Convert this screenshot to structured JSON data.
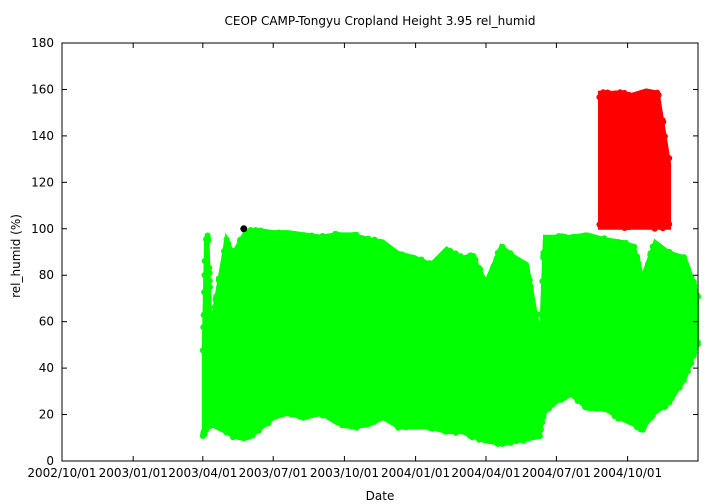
{
  "chart_data": {
    "type": "scatter",
    "title": "CEOP CAMP-Tongyu Cropland Height 3.95 rel_humid",
    "xlabel": "Date",
    "ylabel": "rel_humid (%)",
    "xlim": [
      "2002-10-01",
      "2004-12-31"
    ],
    "ylim": [
      0,
      180
    ],
    "x_ticks": [
      "2002/10/01",
      "2003/01/01",
      "2003/04/01",
      "2003/07/01",
      "2003/10/01",
      "2004/01/01",
      "2004/04/01",
      "2004/07/01",
      "2004/10/01"
    ],
    "y_ticks": [
      "0",
      "20",
      "40",
      "60",
      "80",
      "100",
      "120",
      "140",
      "160",
      "180"
    ],
    "grid": false,
    "legend": "none",
    "series": [
      {
        "color": "#00ff00",
        "band": [
          {
            "date": "2003-04-01",
            "min": 10,
            "max": 50
          },
          {
            "date": "2003-04-04",
            "min": 12,
            "max": 95
          },
          {
            "date": "2003-04-08",
            "min": 14,
            "max": 98
          },
          {
            "date": "2003-04-12",
            "min": 15,
            "max": 60
          },
          {
            "date": "2003-05-01",
            "min": 12,
            "max": 97
          },
          {
            "date": "2003-05-10",
            "min": 10,
            "max": 90
          },
          {
            "date": "2003-05-25",
            "min": 9,
            "max": 99
          },
          {
            "date": "2003-06-10",
            "min": 12,
            "max": 100
          },
          {
            "date": "2003-07-01",
            "min": 18,
            "max": 99
          },
          {
            "date": "2003-07-20",
            "min": 20,
            "max": 99
          },
          {
            "date": "2003-08-10",
            "min": 18,
            "max": 98
          },
          {
            "date": "2003-09-01",
            "min": 20,
            "max": 97
          },
          {
            "date": "2003-09-20",
            "min": 16,
            "max": 98
          },
          {
            "date": "2003-10-10",
            "min": 14,
            "max": 98
          },
          {
            "date": "2003-11-01",
            "min": 15,
            "max": 96
          },
          {
            "date": "2003-11-20",
            "min": 18,
            "max": 95
          },
          {
            "date": "2003-12-10",
            "min": 14,
            "max": 90
          },
          {
            "date": "2004-01-01",
            "min": 14,
            "max": 88
          },
          {
            "date": "2004-01-20",
            "min": 14,
            "max": 85
          },
          {
            "date": "2004-02-10",
            "min": 12,
            "max": 92
          },
          {
            "date": "2004-03-01",
            "min": 12,
            "max": 88
          },
          {
            "date": "2004-03-15",
            "min": 10,
            "max": 89
          },
          {
            "date": "2004-04-01",
            "min": 8,
            "max": 78
          },
          {
            "date": "2004-04-20",
            "min": 7,
            "max": 93
          },
          {
            "date": "2004-05-10",
            "min": 8,
            "max": 88
          },
          {
            "date": "2004-05-25",
            "min": 9,
            "max": 85
          },
          {
            "date": "2004-06-10",
            "min": 10,
            "max": 55
          },
          {
            "date": "2004-06-15",
            "min": 20,
            "max": 97
          },
          {
            "date": "2004-07-01",
            "min": 25,
            "max": 97
          },
          {
            "date": "2004-07-20",
            "min": 28,
            "max": 97
          },
          {
            "date": "2004-08-10",
            "min": 22,
            "max": 98
          },
          {
            "date": "2004-09-01",
            "min": 22,
            "max": 96
          },
          {
            "date": "2004-09-20",
            "min": 18,
            "max": 95
          },
          {
            "date": "2004-10-10",
            "min": 15,
            "max": 93
          },
          {
            "date": "2004-10-20",
            "min": 13,
            "max": 80
          },
          {
            "date": "2004-11-05",
            "min": 20,
            "max": 95
          },
          {
            "date": "2004-11-25",
            "min": 25,
            "max": 90
          },
          {
            "date": "2004-12-15",
            "min": 35,
            "max": 88
          },
          {
            "date": "2004-12-31",
            "min": 50,
            "max": 72
          }
        ]
      },
      {
        "color": "#ff0000",
        "band": [
          {
            "date": "2004-08-25",
            "min": 100,
            "max": 159
          },
          {
            "date": "2004-09-20",
            "min": 100,
            "max": 159
          },
          {
            "date": "2004-10-05",
            "min": 100,
            "max": 158
          },
          {
            "date": "2004-10-25",
            "min": 100,
            "max": 160
          },
          {
            "date": "2004-11-10",
            "min": 100,
            "max": 159
          },
          {
            "date": "2004-11-25",
            "min": 100,
            "max": 128
          }
        ]
      },
      {
        "color": "#000000",
        "points": [
          {
            "date": "2003-05-24",
            "value": 100
          }
        ]
      }
    ]
  }
}
